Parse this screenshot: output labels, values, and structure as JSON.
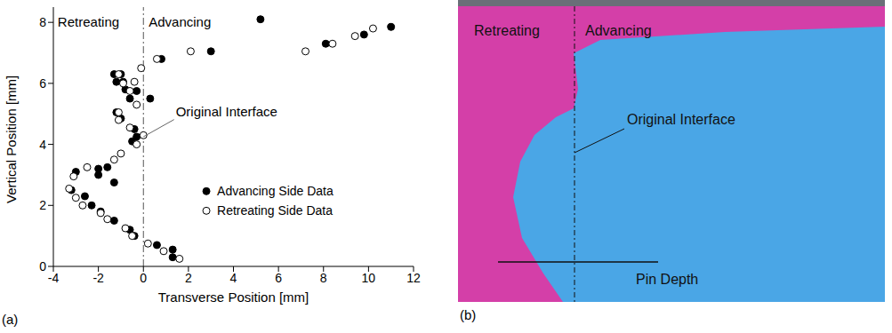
{
  "panel_labels": [
    "(a)",
    "(b)"
  ],
  "chart_data": {
    "type": "scatter",
    "xlabel": "Transverse Position [mm]",
    "ylabel": "Vertical Position [mm]",
    "xlim": [
      -4,
      12
    ],
    "xticks": [
      -4,
      -2,
      0,
      2,
      4,
      6,
      8,
      10,
      12
    ],
    "ylim": [
      0,
      8.5
    ],
    "yticks": [
      0,
      2,
      4,
      6,
      8
    ],
    "grid": false,
    "legend": "lower right",
    "side_labels": [
      "Retreating",
      "Advancing"
    ],
    "reference_line": {
      "x": 0,
      "label": "Original Interface"
    },
    "series": [
      {
        "name": "Advancing Side Data",
        "color": "#000000",
        "marker": "filled_circle",
        "x": [
          5.2,
          11.0,
          9.8,
          8.1,
          3.0,
          0.8,
          -1.3,
          -1.0,
          -1.2,
          -0.9,
          -0.8,
          -0.3,
          0.3,
          -0.6,
          -1.2,
          -1.0,
          -0.4,
          -0.3,
          -0.5,
          -2.0,
          -1.6,
          -2.0,
          -1.3,
          -3.0,
          -3.2,
          -2.6,
          -2.3,
          -1.9,
          -1.3,
          -0.6,
          -0.4,
          0.6,
          1.3,
          1.3
        ],
        "values": [
          8.1,
          7.85,
          7.6,
          7.3,
          7.05,
          6.8,
          6.3,
          6.3,
          6.05,
          6.05,
          5.8,
          5.75,
          5.5,
          5.5,
          5.05,
          4.85,
          4.5,
          4.25,
          4.1,
          3.2,
          3.25,
          3.0,
          2.75,
          3.1,
          2.5,
          2.3,
          2.0,
          1.8,
          1.5,
          1.2,
          1.0,
          0.7,
          0.55,
          0.3
        ]
      },
      {
        "name": "Retreating Side Data",
        "color": "#000000",
        "marker": "open_circle",
        "x": [
          10.2,
          9.4,
          8.4,
          7.2,
          2.1,
          0.6,
          -0.1,
          -1.1,
          -0.9,
          -0.4,
          -0.6,
          -0.3,
          -1.1,
          -1.1,
          -0.6,
          0.0,
          -0.3,
          -1.0,
          -1.3,
          -2.5,
          -3.1,
          -3.3,
          -3.0,
          -2.7,
          -1.9,
          -1.6,
          -0.8,
          -0.5,
          0.2,
          0.9,
          1.6
        ],
        "values": [
          7.8,
          7.55,
          7.3,
          7.05,
          7.05,
          6.8,
          6.5,
          6.3,
          6.0,
          6.05,
          5.75,
          5.3,
          5.05,
          4.8,
          4.55,
          4.3,
          4.0,
          3.7,
          3.5,
          3.25,
          2.95,
          2.55,
          2.25,
          2.0,
          1.75,
          1.55,
          1.25,
          1.0,
          0.75,
          0.5,
          0.25
        ]
      }
    ]
  },
  "photo": {
    "side_left": "Retreating",
    "side_right": "Advancing",
    "interface": "Original Interface",
    "pin_depth": "Pin Depth"
  }
}
